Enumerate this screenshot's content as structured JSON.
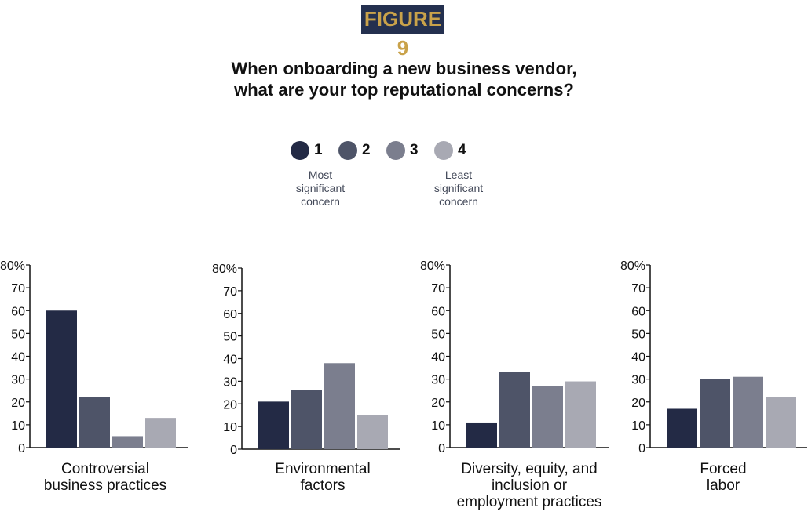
{
  "badge": "FIGURE 9",
  "title_line1": "When onboarding a new business vendor,",
  "title_line2": "what are your top reputational concerns?",
  "legend": {
    "items": [
      {
        "label": "1",
        "color": "#232a45"
      },
      {
        "label": "2",
        "color": "#4e5468"
      },
      {
        "label": "3",
        "color": "#7b7e8e"
      },
      {
        "label": "4",
        "color": "#a8a9b3"
      }
    ],
    "note_most": [
      "Most",
      "significant",
      "concern"
    ],
    "note_least": [
      "Least",
      "significant",
      "concern"
    ]
  },
  "chart_data": [
    {
      "type": "bar",
      "title": "Controversial business practices",
      "title_lines": [
        "Controversial",
        "business practices"
      ],
      "series": [
        "1",
        "2",
        "3",
        "4"
      ],
      "values": [
        60,
        22,
        5,
        13
      ],
      "ylim": [
        0,
        80
      ],
      "yticks": [
        "0",
        "10",
        "20",
        "30",
        "40",
        "50",
        "60",
        "70",
        "80%"
      ]
    },
    {
      "type": "bar",
      "title": "Environmental factors",
      "title_lines": [
        "Environmental",
        "factors"
      ],
      "series": [
        "1",
        "2",
        "3",
        "4"
      ],
      "values": [
        21,
        26,
        38,
        15
      ],
      "ylim": [
        0,
        80
      ],
      "yticks": [
        "0",
        "10",
        "20",
        "30",
        "40",
        "50",
        "60",
        "70",
        "80%"
      ]
    },
    {
      "type": "bar",
      "title": "Diversity, equity, and inclusion or employment practices",
      "title_lines": [
        "Diversity, equity, and",
        "inclusion or",
        "employment practices"
      ],
      "series": [
        "1",
        "2",
        "3",
        "4"
      ],
      "values": [
        11,
        33,
        27,
        29
      ],
      "ylim": [
        0,
        80
      ],
      "yticks": [
        "0",
        "10",
        "20",
        "30",
        "40",
        "50",
        "60",
        "70",
        "80%"
      ]
    },
    {
      "type": "bar",
      "title": "Forced labor",
      "title_lines": [
        "Forced",
        "labor"
      ],
      "series": [
        "1",
        "2",
        "3",
        "4"
      ],
      "values": [
        17,
        30,
        31,
        22
      ],
      "ylim": [
        0,
        80
      ],
      "yticks": [
        "0",
        "10",
        "20",
        "30",
        "40",
        "50",
        "60",
        "70",
        "80%"
      ]
    }
  ]
}
